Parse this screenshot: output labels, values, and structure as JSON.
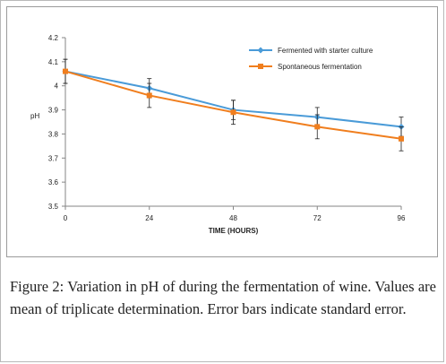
{
  "caption": {
    "label": "Figure 2:",
    "text": " Variation in pH of during the fermentation of wine. Values are mean of triplicate determination. Error bars indicate standard error."
  },
  "chart_data": {
    "type": "line",
    "xlabel": "TIME (HOURS)",
    "ylabel": "pH",
    "x": [
      0,
      24,
      48,
      72,
      96
    ],
    "x_tick_labels": [
      "0",
      "24",
      "48",
      "72",
      "96"
    ],
    "xlim": [
      0,
      96
    ],
    "ylim": [
      3.5,
      4.2
    ],
    "y_ticks": [
      3.5,
      3.6,
      3.7,
      3.8,
      3.9,
      4.0,
      4.1,
      4.2
    ],
    "y_tick_labels": [
      "3.5",
      "3.6",
      "3.7",
      "3.8",
      "3.9",
      "4",
      "4.1",
      "4.2"
    ],
    "grid": false,
    "legend_position": "top-right",
    "series": [
      {
        "name": "Fermented with starter culture",
        "color": "#4a9bd8",
        "marker": "diamond",
        "values": [
          4.06,
          3.99,
          3.9,
          3.87,
          3.83
        ],
        "error": [
          0.05,
          0.04,
          0.04,
          0.04,
          0.04
        ]
      },
      {
        "name": "Spontaneous fermentation",
        "color": "#f07e1e",
        "marker": "square",
        "values": [
          4.06,
          3.96,
          3.89,
          3.83,
          3.78
        ],
        "error": [
          0.05,
          0.05,
          0.05,
          0.05,
          0.05
        ]
      }
    ]
  }
}
